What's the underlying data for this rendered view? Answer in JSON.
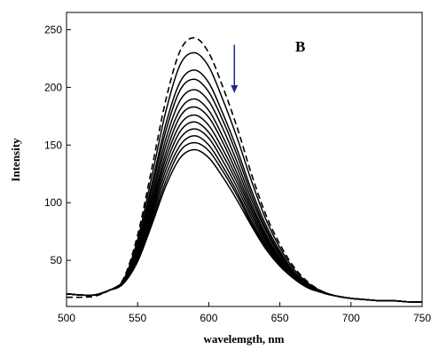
{
  "chart_data": {
    "type": "line",
    "xlabel": "wavelemgth, nm",
    "ylabel": "Intensity",
    "panel_label": "B",
    "xlim": [
      500,
      750
    ],
    "ylim": [
      10,
      265
    ],
    "xticks": [
      500,
      550,
      600,
      650,
      700,
      750
    ],
    "yticks": [
      50,
      100,
      150,
      200,
      250
    ],
    "x": [
      500,
      510,
      520,
      530,
      540,
      550,
      560,
      570,
      580,
      590,
      600,
      610,
      620,
      630,
      640,
      650,
      660,
      670,
      680,
      690,
      700,
      710,
      720,
      730,
      740,
      750
    ],
    "series": [
      {
        "style": "dashed",
        "peak": 243,
        "values": [
          18,
          18,
          19,
          24,
          34,
          72,
          130,
          190,
          232,
          243,
          230,
          200,
          165,
          125,
          90,
          64,
          44,
          31,
          23,
          19,
          17,
          16,
          15,
          15,
          14,
          14
        ]
      },
      {
        "style": "solid",
        "peak": 230,
        "values": [
          21,
          20,
          20,
          24,
          33,
          68,
          123,
          180,
          220,
          230,
          218,
          189,
          156,
          119,
          86,
          61,
          42,
          30,
          23,
          19,
          17,
          16,
          15,
          15,
          14,
          14
        ]
      },
      {
        "style": "solid",
        "peak": 215,
        "values": [
          21,
          20,
          20,
          24,
          32,
          64,
          116,
          169,
          205,
          215,
          204,
          177,
          146,
          111,
          81,
          58,
          40,
          29,
          22,
          19,
          17,
          16,
          15,
          15,
          14,
          14
        ]
      },
      {
        "style": "solid",
        "peak": 207,
        "values": [
          21,
          20,
          20,
          24,
          32,
          62,
          112,
          163,
          198,
          207,
          196,
          171,
          141,
          107,
          78,
          56,
          39,
          29,
          22,
          19,
          17,
          16,
          15,
          15,
          14,
          14
        ]
      },
      {
        "style": "solid",
        "peak": 198,
        "values": [
          21,
          20,
          20,
          24,
          32,
          60,
          107,
          156,
          189,
          198,
          188,
          164,
          135,
          103,
          76,
          54,
          38,
          28,
          22,
          19,
          17,
          16,
          15,
          15,
          14,
          14
        ]
      },
      {
        "style": "solid",
        "peak": 190,
        "values": [
          21,
          20,
          20,
          24,
          31,
          58,
          103,
          150,
          181,
          190,
          180,
          157,
          130,
          99,
          73,
          52,
          37,
          28,
          22,
          19,
          17,
          16,
          15,
          15,
          14,
          14
        ]
      },
      {
        "style": "solid",
        "peak": 183,
        "values": [
          21,
          20,
          20,
          24,
          31,
          56,
          99,
          144,
          175,
          183,
          174,
          152,
          125,
          96,
          71,
          51,
          37,
          28,
          22,
          19,
          17,
          16,
          15,
          15,
          14,
          14
        ]
      },
      {
        "style": "solid",
        "peak": 176,
        "values": [
          21,
          20,
          20,
          24,
          31,
          54,
          96,
          139,
          168,
          176,
          167,
          146,
          121,
          93,
          69,
          50,
          36,
          27,
          22,
          19,
          17,
          16,
          15,
          15,
          14,
          14
        ]
      },
      {
        "style": "solid",
        "peak": 170,
        "values": [
          21,
          20,
          20,
          24,
          30,
          53,
          93,
          134,
          162,
          170,
          161,
          141,
          117,
          90,
          67,
          49,
          36,
          27,
          22,
          19,
          17,
          16,
          15,
          15,
          14,
          14
        ]
      },
      {
        "style": "solid",
        "peak": 164,
        "values": [
          21,
          20,
          20,
          24,
          30,
          52,
          90,
          129,
          156,
          164,
          156,
          136,
          113,
          87,
          65,
          48,
          35,
          27,
          22,
          19,
          17,
          16,
          15,
          15,
          14,
          14
        ]
      },
      {
        "style": "solid",
        "peak": 158,
        "values": [
          21,
          20,
          20,
          24,
          30,
          51,
          87,
          124,
          150,
          158,
          150,
          131,
          109,
          84,
          63,
          47,
          35,
          27,
          22,
          19,
          17,
          16,
          15,
          15,
          14,
          14
        ]
      },
      {
        "style": "solid",
        "peak": 152,
        "values": [
          21,
          20,
          20,
          24,
          30,
          50,
          84,
          119,
          145,
          152,
          145,
          127,
          106,
          82,
          62,
          46,
          34,
          26,
          22,
          19,
          17,
          16,
          15,
          15,
          14,
          14
        ]
      },
      {
        "style": "solid",
        "peak": 146,
        "values": [
          21,
          20,
          20,
          24,
          30,
          49,
          81,
          115,
          139,
          146,
          139,
          122,
          102,
          80,
          60,
          45,
          34,
          26,
          22,
          19,
          17,
          16,
          15,
          15,
          14,
          14
        ]
      }
    ],
    "annotation": {
      "type": "arrow",
      "direction": "down",
      "color": "#1f2a8c",
      "x": 618,
      "y_start": 237,
      "y_end": 195
    }
  }
}
